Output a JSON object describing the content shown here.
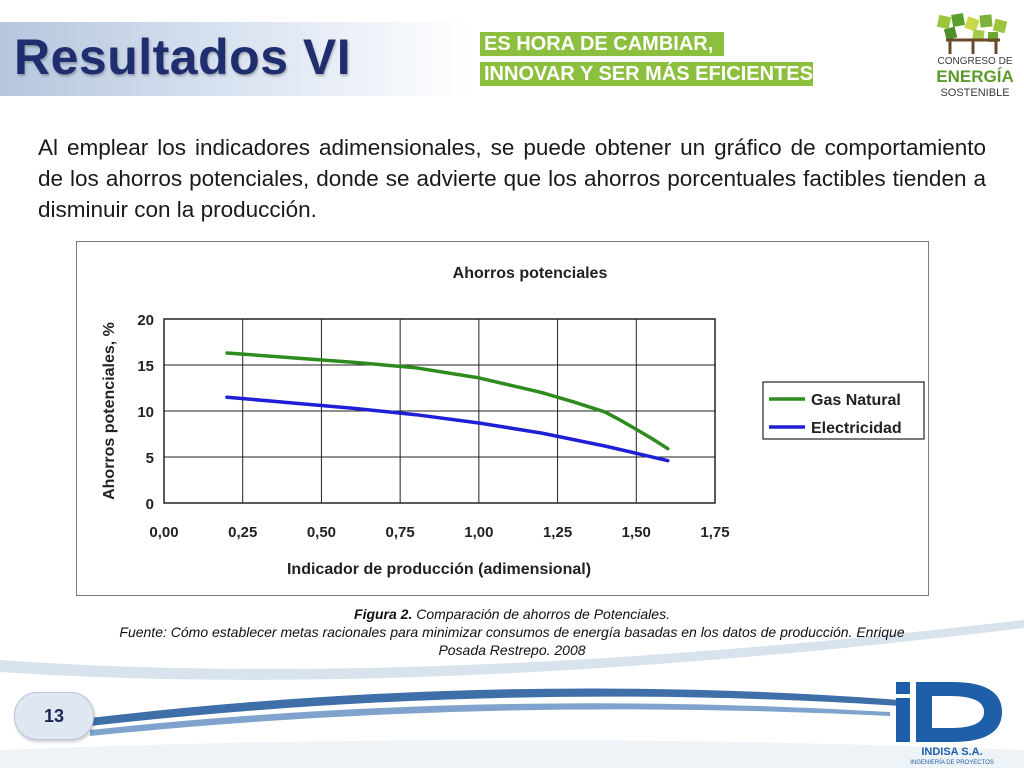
{
  "header": {
    "title": "Resultados VI",
    "slogan_line_1": "ES HORA DE CAMBIAR,",
    "slogan_line_2": "INNOVAR Y SER MÁS EFICIENTES",
    "colors": {
      "title": "#1f2e6e",
      "slogan_bg": "#8dbf3e"
    }
  },
  "congress_logo": {
    "line_1": "CONGRESO DE",
    "line_2": "ENERGÍA",
    "line_3": "SOSTENIBLE",
    "icon": "congress-leaf-house-logo"
  },
  "body_text": "Al emplear los indicadores adimensionales, se puede obtener un gráfico de comportamiento de los ahorros potenciales, donde se advierte que los ahorros porcentuales factibles tienden a disminuir con la producción.",
  "chart_data": {
    "type": "line",
    "title": "Ahorros potenciales",
    "xlabel": "Indicador de producción (adimensional)",
    "ylabel": "Ahorros potenciales, %",
    "xlim": [
      0,
      1.75
    ],
    "ylim": [
      0,
      20
    ],
    "x_ticks": [
      "0,00",
      "0,25",
      "0,50",
      "0,75",
      "1,00",
      "1,25",
      "1,50",
      "1,75"
    ],
    "y_ticks": [
      "0",
      "5",
      "10",
      "15",
      "20"
    ],
    "grid": true,
    "legend_position": "right",
    "series": [
      {
        "name": "Gas Natural",
        "color": "#2e8b1e",
        "x": [
          0.2,
          0.4,
          0.6,
          0.8,
          1.0,
          1.2,
          1.3,
          1.4,
          1.45,
          1.5,
          1.55,
          1.6
        ],
        "y": [
          16.3,
          15.8,
          15.3,
          14.7,
          13.6,
          12.0,
          11.0,
          9.9,
          9.0,
          8.0,
          7.0,
          5.9
        ]
      },
      {
        "name": "Electricidad",
        "color": "#1f1fd6",
        "x": [
          0.2,
          0.4,
          0.6,
          0.8,
          1.0,
          1.2,
          1.4,
          1.5,
          1.6
        ],
        "y": [
          11.5,
          10.9,
          10.3,
          9.6,
          8.7,
          7.6,
          6.2,
          5.4,
          4.6
        ]
      }
    ]
  },
  "caption": {
    "label": "Figura 2.",
    "text": " Comparación de ahorros de Potenciales.",
    "source": "Fuente: Cómo establecer metas racionales para minimizar consumos de energía basadas en los datos de producción. Enrique Posada Restrepo. 2008"
  },
  "footer": {
    "page_number": "13",
    "company": "INDISA S.A.",
    "company_subtitle": "INGENIERÍA DE PROYECTOS",
    "colors": {
      "swoosh": "#5a86b8",
      "logo": "#1f5ea8"
    }
  }
}
